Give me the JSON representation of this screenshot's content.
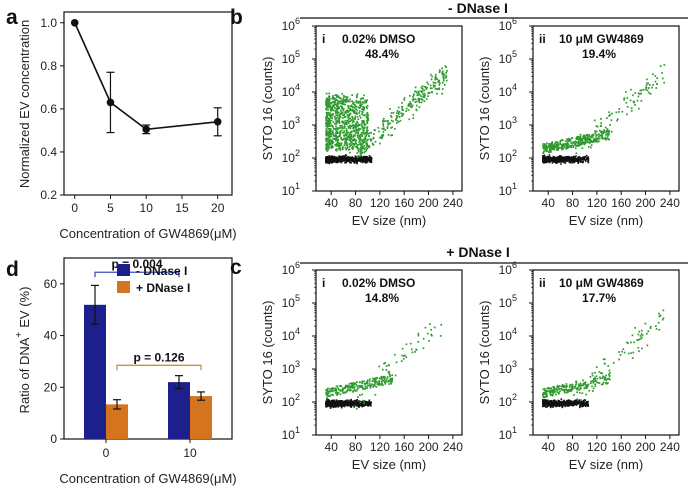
{
  "chart_data": [
    {
      "panel": "a",
      "type": "line",
      "xlabel": "Concentration of GW4869(μM)",
      "ylabel": "Normalized EV concentration",
      "xlim": [
        -1.5,
        22
      ],
      "ylim": [
        0.2,
        1.05
      ],
      "xticks": [
        0,
        5,
        10,
        15,
        20
      ],
      "xtick_labels": [
        "0",
        "5",
        "10",
        "15",
        "20"
      ],
      "yticks": [
        0.2,
        0.4,
        0.6,
        0.8,
        1.0
      ],
      "ytick_labels": [
        "0.2",
        "0.4",
        "0.6",
        "0.8",
        "1.0"
      ],
      "x": [
        0,
        5,
        10,
        20
      ],
      "y": [
        1.0,
        0.63,
        0.505,
        0.54
      ],
      "err": [
        0,
        0.14,
        0.02,
        0.065
      ]
    },
    {
      "panel": "d",
      "type": "bar",
      "xlabel": "Concentration of GW4869(μM)",
      "ylabel_main": "Ratio of DNA",
      "ylabel_sup": "+",
      "ylabel_end": "EV (%)",
      "categories": [
        "0",
        "10"
      ],
      "ylim": [
        0,
        70
      ],
      "yticks": [
        0,
        20,
        40,
        60
      ],
      "ytick_labels": [
        "0",
        "20",
        "40",
        "60"
      ],
      "series": [
        {
          "name": "- DNase I",
          "color": "#1c1f8c",
          "values": [
            51.9,
            22.0
          ],
          "err": [
            7.5,
            2.5
          ]
        },
        {
          "name": "+ DNase I",
          "color": "#d4741f",
          "values": [
            13.4,
            16.6
          ],
          "err": [
            1.8,
            1.6
          ]
        }
      ],
      "annotations": [
        {
          "text": "p = 0.004",
          "color": "#3e4fc8",
          "between": "- DNase I"
        },
        {
          "text": "p = 0.126",
          "color": "#c89535",
          "between": "+ DNase I"
        }
      ]
    }
  ],
  "flow": {
    "b": {
      "panel": "b",
      "header": "- DNase I",
      "plots": [
        {
          "roman": "i",
          "label": "0.02% DMSO",
          "pct": "48.4%",
          "cloud": "dense"
        },
        {
          "roman": "ii",
          "label": "10 μM GW4869",
          "pct": "19.4%",
          "cloud": "medium"
        }
      ]
    },
    "c": {
      "panel": "c",
      "header": "+ DNase I",
      "plots": [
        {
          "roman": "i",
          "label": "0.02% DMSO",
          "pct": "14.8%",
          "cloud": "sparse"
        },
        {
          "roman": "ii",
          "label": "10 μM GW4869",
          "pct": "17.7%",
          "cloud": "sparse"
        }
      ]
    },
    "xlabel": "EV size (nm)",
    "ylabel": "SYTO 16 (counts)",
    "xticks": [
      40,
      80,
      120,
      160,
      200,
      240
    ],
    "xtick_labels": [
      "40",
      "80",
      "120",
      "160",
      "200",
      "240"
    ],
    "xlim": [
      15,
      255
    ],
    "ytick_base": "10",
    "ytick_exps": [
      "1",
      "2",
      "3",
      "4",
      "5",
      "6"
    ],
    "colors": {
      "positive": "#2e9a2e",
      "negative": "#111111"
    }
  }
}
